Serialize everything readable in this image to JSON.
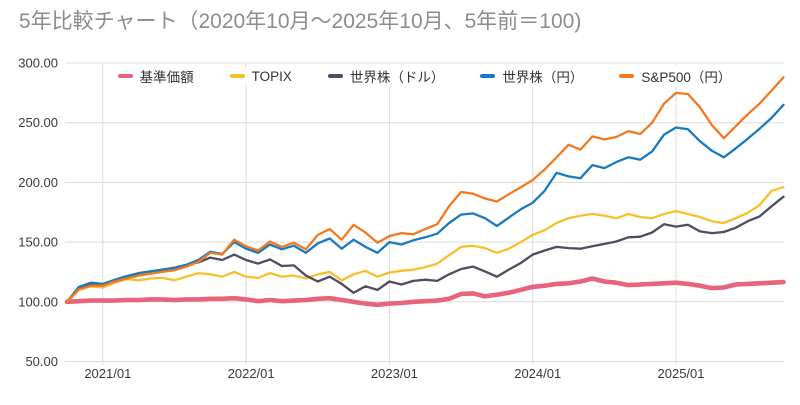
{
  "title": "5年比較チャート（2020年10月～2025年10月、5年前＝100)",
  "colors": {
    "background": "#ffffff",
    "title_text": "#8c8c8c",
    "axis_text": "#3a3a3a",
    "gridline": "#dcdcdc"
  },
  "chart_data": {
    "type": "line",
    "title": "5年比較チャート（2020年10月～2025年10月、5年前＝100)",
    "x_unit": "month",
    "x_range": [
      "2020/10",
      "2025/10"
    ],
    "base_value_note": "5年前＝100",
    "grid": true,
    "legend_position": "top",
    "ylim": [
      50,
      300
    ],
    "y_tick_values": [
      300,
      250,
      200,
      150,
      100,
      50
    ],
    "y_tick_labels": [
      "300.00",
      "250.00",
      "200.00",
      "150.00",
      "100.00",
      "50.00"
    ],
    "x_tick_labels": [
      "2021/01",
      "2022/01",
      "2023/01",
      "2024/01",
      "2025/01"
    ],
    "x_tick_month_indices": [
      3,
      15,
      27,
      39,
      51
    ],
    "series": [
      {
        "name": "基準価額",
        "color": "#e8647c",
        "thick": true,
        "values": [
          100,
          100.5,
          101,
          101,
          101,
          101.5,
          101.5,
          102,
          102,
          101.5,
          102,
          102,
          102.5,
          102.5,
          103,
          102,
          100.5,
          101.5,
          100.5,
          101,
          101.5,
          102.5,
          103,
          101.5,
          100,
          98.5,
          97.5,
          98.5,
          99,
          100,
          100.5,
          101,
          102.5,
          106.5,
          107,
          104.5,
          106,
          107.5,
          110,
          112.5,
          113.5,
          115,
          115.5,
          117,
          119.5,
          117,
          116,
          114,
          114.5,
          115,
          115.5,
          116,
          115,
          113.5,
          111.5,
          112,
          114.5,
          115,
          115.5,
          116,
          116.5
        ]
      },
      {
        "name": "TOPIX",
        "color": "#f9bf2b",
        "thick": false,
        "values": [
          100,
          110,
          113,
          112,
          116,
          119,
          118,
          119.5,
          120,
          118,
          121,
          124,
          123,
          121,
          125,
          121,
          120,
          124,
          121,
          122,
          119.5,
          123,
          125,
          118,
          123,
          126,
          121,
          124.5,
          126,
          127,
          129,
          132,
          139,
          146,
          147,
          145,
          141,
          144.5,
          150,
          156,
          160,
          166,
          170,
          172,
          173.5,
          172,
          170,
          173.5,
          171,
          170,
          173.5,
          176,
          173.5,
          171,
          167.5,
          166,
          170,
          174.5,
          181,
          193,
          196
        ]
      },
      {
        "name": "世界株（ドル）",
        "color": "#504b5e",
        "thick": false,
        "values": [
          100,
          112,
          115.5,
          114.5,
          117,
          120.5,
          124,
          125.5,
          127,
          128.5,
          131,
          133,
          137,
          135,
          139.5,
          135,
          132,
          135.5,
          130,
          130.5,
          122,
          117,
          121,
          115,
          107.5,
          113,
          110,
          117,
          114.5,
          117.5,
          118.5,
          117.5,
          123,
          127.5,
          129.5,
          125.5,
          121,
          127,
          132.5,
          139.5,
          143,
          146,
          145,
          144.5,
          146.5,
          148.5,
          150.5,
          154,
          154.5,
          158,
          165,
          163,
          164.5,
          159,
          157.5,
          158.5,
          162,
          167.5,
          171.5,
          180,
          188
        ]
      },
      {
        "name": "世界株（円）",
        "color": "#1a7abf",
        "thick": false,
        "values": [
          100,
          112.5,
          116,
          115,
          118.5,
          121.5,
          124,
          125.5,
          127,
          128,
          131,
          135,
          142,
          140,
          150,
          144.5,
          141,
          148,
          144,
          147,
          141,
          149,
          153,
          144.5,
          152,
          146,
          141,
          150,
          148,
          151.5,
          154,
          157,
          166,
          173,
          174,
          170,
          163.5,
          170.5,
          177.5,
          183,
          193,
          208,
          205,
          203.5,
          214.5,
          212,
          217,
          221,
          219,
          226,
          240,
          246,
          244.5,
          234.5,
          226.5,
          221,
          228.5,
          236.5,
          245,
          254,
          265
        ]
      },
      {
        "name": "S&P500（円）",
        "color": "#f3791f",
        "thick": false,
        "values": [
          100,
          110.5,
          113.5,
          113.5,
          117,
          119.5,
          122,
          123.5,
          125,
          126.5,
          129.5,
          133.5,
          141,
          139.5,
          152,
          146.5,
          143,
          150.5,
          146,
          149.5,
          144,
          156,
          161,
          152,
          164.5,
          158,
          149.5,
          155,
          157.5,
          156.5,
          161,
          165,
          180,
          192,
          190.5,
          186.5,
          184,
          190,
          196,
          202,
          211,
          221,
          231.5,
          227.5,
          238.5,
          236,
          238,
          243,
          240.5,
          250,
          266,
          275,
          274,
          263,
          248,
          237,
          247,
          257,
          266,
          277,
          288
        ]
      }
    ]
  }
}
